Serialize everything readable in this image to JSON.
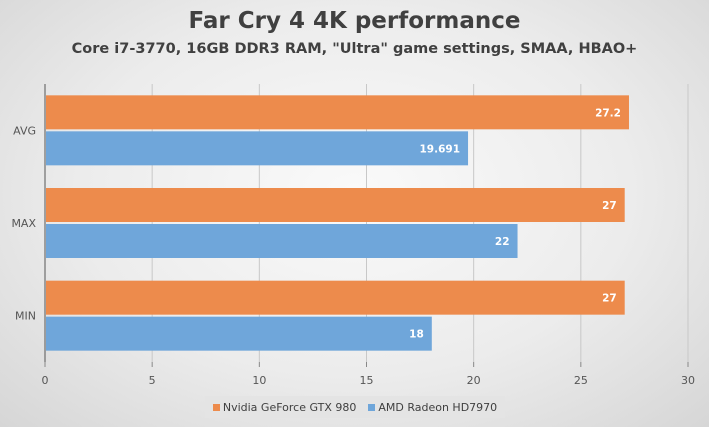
{
  "chart_data": {
    "type": "bar",
    "orientation": "horizontal",
    "title": "Far Cry 4 4K performance",
    "subtitle": "Core i7-3770, 16GB DDR3 RAM, \"Ultra\" game settings, SMAA, HBAO+",
    "categories": [
      "AVG",
      "MAX",
      "MIN"
    ],
    "series": [
      {
        "name": "Nvidia GeForce GTX 980",
        "color": "#ed8b4c",
        "values": [
          27.2,
          27,
          27
        ],
        "labels": [
          "27.2",
          "27",
          "27"
        ]
      },
      {
        "name": "AMD Radeon HD7970",
        "color": "#6fa6da",
        "values": [
          19.691,
          22,
          18
        ],
        "labels": [
          "19.691",
          "22",
          "18"
        ]
      }
    ],
    "xlim": [
      0,
      30
    ],
    "xticks": [
      "0",
      "5",
      "10",
      "15",
      "20",
      "25",
      "30"
    ],
    "grid": true,
    "legend": "bottom"
  }
}
